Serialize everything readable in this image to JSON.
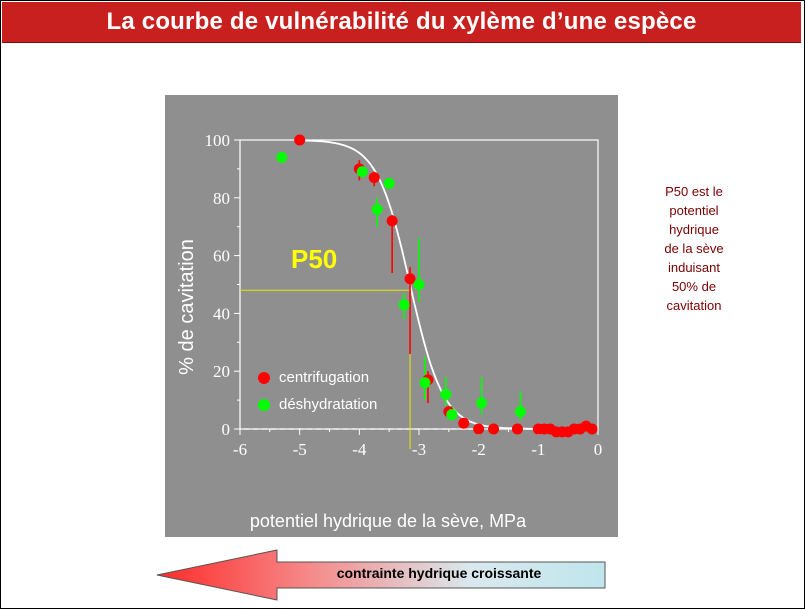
{
  "title": "La courbe de vulnérabilité du xylème d’une espèce",
  "note": "P50 est le\npotentiel\nhydrique\nde la sève\ninduisant\n50% de\ncavitation",
  "arrow_label": "contrainte hydrique croissante",
  "colors": {
    "title_bg": "#c8201e",
    "panel_bg": "#8f8f8f",
    "centrifugation": "#ff0000",
    "deshydratation": "#00ff00",
    "fit_curve": "#ffffff",
    "p50_line": "#e6e600",
    "p50_label": "#ffff00",
    "note_text": "#7a0000"
  },
  "chart_data": {
    "type": "scatter",
    "xlabel": "potentiel hydrique de la sève, MPa",
    "ylabel": "% de cavitation",
    "xlim": [
      -6,
      0
    ],
    "ylim": [
      0,
      100
    ],
    "x_ticks": [
      -6,
      -5,
      -4,
      -3,
      -2,
      -1,
      0
    ],
    "y_ticks": [
      0,
      20,
      40,
      60,
      80,
      100
    ],
    "annotation": "P50",
    "p50": {
      "x": -3.15,
      "y": 48
    },
    "legend_position": "bottom-left",
    "series": [
      {
        "name": "centrifugation",
        "points": [
          {
            "x": -5.0,
            "y": 100
          },
          {
            "x": -4.0,
            "y": 90,
            "err": [
              86,
              93
            ]
          },
          {
            "x": -3.75,
            "y": 87,
            "err": [
              84,
              89
            ]
          },
          {
            "x": -3.45,
            "y": 72,
            "err": [
              54,
              74
            ]
          },
          {
            "x": -3.15,
            "y": 52,
            "err": [
              26,
              56
            ]
          },
          {
            "x": -2.85,
            "y": 17,
            "err": [
              9,
              20
            ]
          },
          {
            "x": -2.5,
            "y": 6
          },
          {
            "x": -2.25,
            "y": 2
          },
          {
            "x": -2.0,
            "y": 0
          },
          {
            "x": -1.75,
            "y": 0
          },
          {
            "x": -1.35,
            "y": 0
          },
          {
            "x": -1.0,
            "y": 0
          },
          {
            "x": -0.9,
            "y": 0
          },
          {
            "x": -0.8,
            "y": 0
          },
          {
            "x": -0.7,
            "y": -1
          },
          {
            "x": -0.6,
            "y": -1
          },
          {
            "x": -0.5,
            "y": -1
          },
          {
            "x": -0.4,
            "y": 0
          },
          {
            "x": -0.3,
            "y": 0
          },
          {
            "x": -0.2,
            "y": 1
          },
          {
            "x": -0.1,
            "y": 0
          }
        ]
      },
      {
        "name": "déshydratation",
        "points": [
          {
            "x": -5.3,
            "y": 94
          },
          {
            "x": -3.95,
            "y": 89
          },
          {
            "x": -3.7,
            "y": 76,
            "err": [
              70,
              80
            ]
          },
          {
            "x": -3.5,
            "y": 85
          },
          {
            "x": -3.25,
            "y": 43,
            "err": [
              38,
              47
            ]
          },
          {
            "x": -3.0,
            "y": 50,
            "err": [
              44,
              66
            ]
          },
          {
            "x": -2.9,
            "y": 16,
            "err": [
              10,
              25
            ]
          },
          {
            "x": -2.55,
            "y": 12,
            "err": [
              8,
              18
            ]
          },
          {
            "x": -2.45,
            "y": 5,
            "err": [
              3,
              8
            ]
          },
          {
            "x": -1.95,
            "y": 9,
            "err": [
              5,
              18
            ]
          },
          {
            "x": -1.3,
            "y": 6,
            "err": [
              3,
              13
            ]
          }
        ]
      }
    ]
  }
}
